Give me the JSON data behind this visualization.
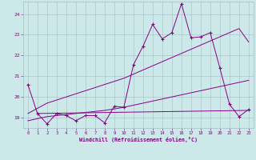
{
  "xlabel": "Windchill (Refroidissement éolien,°C)",
  "bg_color": "#cce8e8",
  "grid_color": "#aabbcc",
  "line_color": "#880088",
  "tick_color": "#880088",
  "x_ticks": [
    0,
    1,
    2,
    3,
    4,
    5,
    6,
    7,
    8,
    9,
    10,
    11,
    12,
    13,
    14,
    15,
    16,
    17,
    18,
    19,
    20,
    21,
    22,
    23
  ],
  "y_ticks": [
    19,
    20,
    21,
    22,
    23,
    24
  ],
  "ylim": [
    18.5,
    24.6
  ],
  "xlim": [
    -0.5,
    23.5
  ],
  "main_data": [
    20.6,
    19.2,
    18.7,
    19.2,
    19.1,
    18.85,
    19.1,
    19.1,
    18.75,
    19.55,
    19.5,
    21.55,
    22.45,
    23.5,
    22.8,
    23.1,
    24.5,
    22.85,
    22.9,
    23.1,
    21.4,
    19.65,
    19.05,
    19.4
  ],
  "trend_low": [
    18.85,
    18.95,
    19.05,
    19.1,
    19.15,
    19.2,
    19.25,
    19.3,
    19.35,
    19.42,
    19.5,
    19.6,
    19.7,
    19.8,
    19.9,
    20.0,
    20.1,
    20.2,
    20.3,
    20.4,
    20.5,
    20.6,
    20.7,
    20.8
  ],
  "trend_high": [
    19.2,
    19.45,
    19.7,
    19.85,
    20.0,
    20.15,
    20.3,
    20.45,
    20.6,
    20.75,
    20.9,
    21.1,
    21.3,
    21.5,
    21.7,
    21.9,
    22.1,
    22.3,
    22.5,
    22.7,
    22.9,
    23.1,
    23.3,
    22.65
  ],
  "flat_line_x": [
    1,
    23
  ],
  "flat_line_y": [
    19.2,
    19.35
  ]
}
